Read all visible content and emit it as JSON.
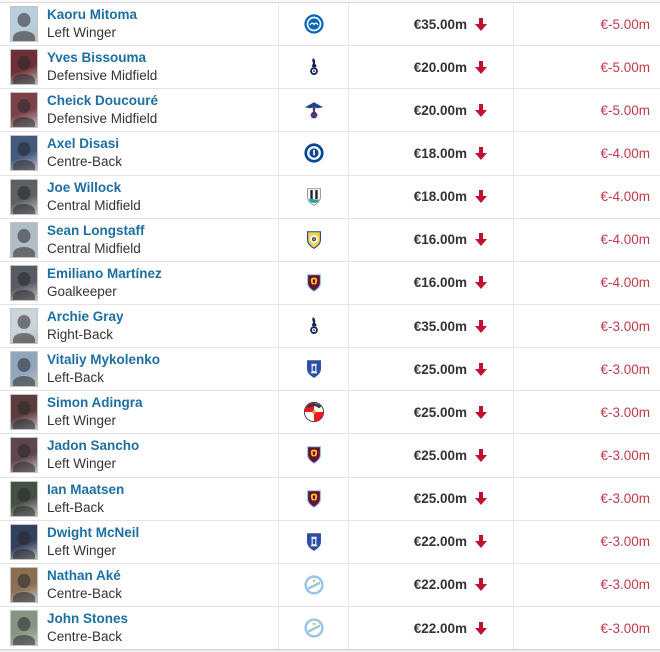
{
  "colors": {
    "link": "#1d6fa2",
    "text": "#333333",
    "negative_text": "#c13a4a",
    "decrease_arrow": "#c0122f",
    "row_border": "#e4e4e4",
    "col_border": "#e8e8e8"
  },
  "clubs": {
    "brighton": {
      "name": "Brighton & Hove Albion",
      "colors": [
        "#0767b2",
        "#ffffff"
      ]
    },
    "tottenham": {
      "name": "Tottenham Hotspur",
      "colors": [
        "#132257",
        "#ffffff"
      ]
    },
    "crystal-palace": {
      "name": "Crystal Palace",
      "colors": [
        "#1b458f",
        "#c4122e"
      ]
    },
    "chelsea": {
      "name": "Chelsea FC",
      "colors": [
        "#034694",
        "#ffffff"
      ]
    },
    "newcastle": {
      "name": "Newcastle United",
      "colors": [
        "#241f20",
        "#ffffff",
        "#1fa5a5"
      ]
    },
    "leeds": {
      "name": "Leeds United",
      "colors": [
        "#f5d547",
        "#1d428a",
        "#ffffff"
      ]
    },
    "aston-villa": {
      "name": "Aston Villa",
      "colors": [
        "#670e36",
        "#95bfe5",
        "#f3c715"
      ]
    },
    "everton": {
      "name": "Everton FC",
      "colors": [
        "#2b4ea3",
        "#ffffff"
      ]
    },
    "sunderland": {
      "name": "Sunderland AFC",
      "colors": [
        "#eb172b",
        "#ffffff",
        "#3b3b3b",
        "#d4a017"
      ]
    },
    "man-city": {
      "name": "Manchester City",
      "colors": [
        "#98c5e9",
        "#ffffff",
        "#fdbe11"
      ]
    }
  },
  "rows": [
    {
      "name": "Kaoru Mitoma",
      "position": "Left Winger",
      "club": "brighton",
      "market_value": "€35.00m",
      "change": "€-5.00m",
      "photo_bg": "#b9cfdd"
    },
    {
      "name": "Yves Bissouma",
      "position": "Defensive Midfield",
      "club": "tottenham",
      "market_value": "€20.00m",
      "change": "€-5.00m",
      "photo_bg": "#6d3036"
    },
    {
      "name": "Cheick Doucouré",
      "position": "Defensive Midfield",
      "club": "crystal-palace",
      "market_value": "€20.00m",
      "change": "€-5.00m",
      "photo_bg": "#7d4148"
    },
    {
      "name": "Axel Disasi",
      "position": "Centre-Back",
      "club": "chelsea",
      "market_value": "€18.00m",
      "change": "€-4.00m",
      "photo_bg": "#44597e"
    },
    {
      "name": "Joe Willock",
      "position": "Central Midfield",
      "club": "newcastle",
      "market_value": "€18.00m",
      "change": "€-4.00m",
      "photo_bg": "#5d6166"
    },
    {
      "name": "Sean Longstaff",
      "position": "Central Midfield",
      "club": "leeds",
      "market_value": "€16.00m",
      "change": "€-4.00m",
      "photo_bg": "#aebcc6"
    },
    {
      "name": "Emiliano Martínez",
      "position": "Goalkeeper",
      "club": "aston-villa",
      "market_value": "€16.00m",
      "change": "€-4.00m",
      "photo_bg": "#585c63"
    },
    {
      "name": "Archie Gray",
      "position": "Right-Back",
      "club": "tottenham",
      "market_value": "€35.00m",
      "change": "€-3.00m",
      "photo_bg": "#cdd5da"
    },
    {
      "name": "Vitaliy Mykolenko",
      "position": "Left-Back",
      "club": "everton",
      "market_value": "€25.00m",
      "change": "€-3.00m",
      "photo_bg": "#8fa6bd"
    },
    {
      "name": "Simon Adingra",
      "position": "Left Winger",
      "club": "sunderland",
      "market_value": "€25.00m",
      "change": "€-3.00m",
      "photo_bg": "#5c3c3c"
    },
    {
      "name": "Jadon Sancho",
      "position": "Left Winger",
      "club": "aston-villa",
      "market_value": "€25.00m",
      "change": "€-3.00m",
      "photo_bg": "#5f464e"
    },
    {
      "name": "Ian Maatsen",
      "position": "Left-Back",
      "club": "aston-villa",
      "market_value": "€25.00m",
      "change": "€-3.00m",
      "photo_bg": "#454f44"
    },
    {
      "name": "Dwight McNeil",
      "position": "Left Winger",
      "club": "everton",
      "market_value": "€22.00m",
      "change": "€-3.00m",
      "photo_bg": "#33415c"
    },
    {
      "name": "Nathan Aké",
      "position": "Centre-Back",
      "club": "man-city",
      "market_value": "€22.00m",
      "change": "€-3.00m",
      "photo_bg": "#8c6f52"
    },
    {
      "name": "John Stones",
      "position": "Centre-Back",
      "club": "man-city",
      "market_value": "€22.00m",
      "change": "€-3.00m",
      "photo_bg": "#879482"
    }
  ]
}
